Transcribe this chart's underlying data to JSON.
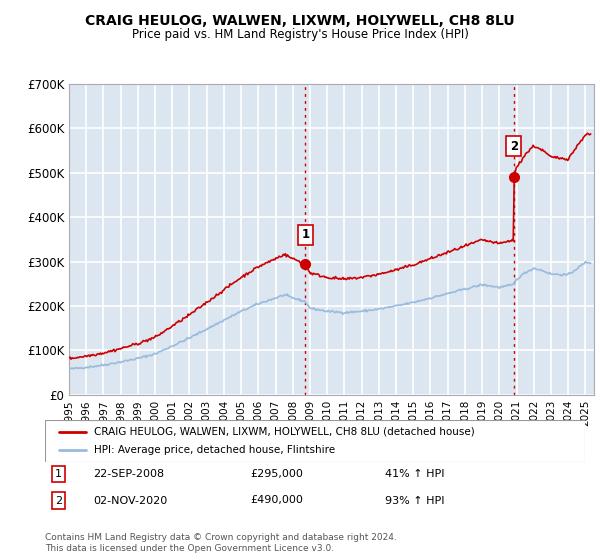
{
  "title": "CRAIG HEULOG, WALWEN, LIXWM, HOLYWELL, CH8 8LU",
  "subtitle": "Price paid vs. HM Land Registry's House Price Index (HPI)",
  "ylim": [
    0,
    700000
  ],
  "yticks": [
    0,
    100000,
    200000,
    300000,
    400000,
    500000,
    600000,
    700000
  ],
  "ytick_labels": [
    "£0",
    "£100K",
    "£200K",
    "£300K",
    "£400K",
    "£500K",
    "£600K",
    "£700K"
  ],
  "bg_color": "#dce6f1",
  "grid_color": "#ffffff",
  "line1_color": "#cc0000",
  "line2_color": "#99bbdd",
  "transaction1_x": 2008.73,
  "transaction1_y": 295000,
  "transaction2_x": 2020.84,
  "transaction2_y": 490000,
  "vline_color": "#cc0000",
  "legend_label1": "CRAIG HEULOG, WALWEN, LIXWM, HOLYWELL, CH8 8LU (detached house)",
  "legend_label2": "HPI: Average price, detached house, Flintshire",
  "note1_date": "22-SEP-2008",
  "note1_price": "£295,000",
  "note1_hpi": "41% ↑ HPI",
  "note2_date": "02-NOV-2020",
  "note2_price": "£490,000",
  "note2_hpi": "93% ↑ HPI",
  "footer": "Contains HM Land Registry data © Crown copyright and database right 2024.\nThis data is licensed under the Open Government Licence v3.0.",
  "xmin": 1995.0,
  "xmax": 2025.5
}
